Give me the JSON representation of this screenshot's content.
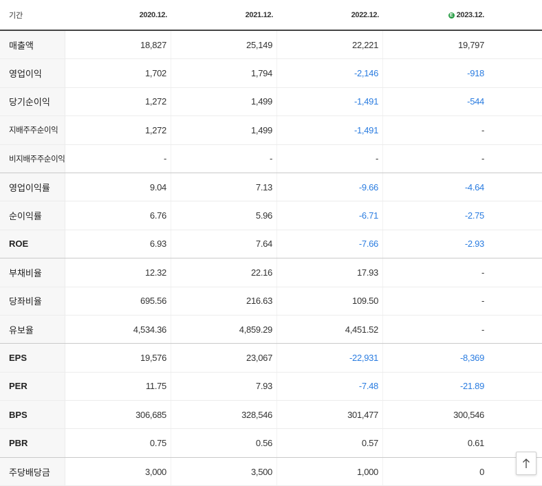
{
  "header": {
    "period_label": "기간",
    "periods": [
      "2020.12.",
      "2021.12.",
      "2022.12.",
      "2023.12."
    ],
    "estimate_badge": "E"
  },
  "colors": {
    "negative": "#2a7ce0",
    "estimate_badge": "#2fa04b"
  },
  "rows": [
    {
      "label": "매출액",
      "values": [
        "18,827",
        "25,149",
        "22,221",
        "19,797"
      ]
    },
    {
      "label": "영업이익",
      "values": [
        "1,702",
        "1,794",
        "-2,146",
        "-918"
      ]
    },
    {
      "label": "당기순이익",
      "values": [
        "1,272",
        "1,499",
        "-1,491",
        "-544"
      ]
    },
    {
      "label": "지배주주순이익",
      "values": [
        "1,272",
        "1,499",
        "-1,491",
        "-"
      ]
    },
    {
      "label": "비지배주주순이익",
      "values": [
        "-",
        "-",
        "-",
        "-"
      ]
    },
    {
      "label": "영업이익률",
      "values": [
        "9.04",
        "7.13",
        "-9.66",
        "-4.64"
      ]
    },
    {
      "label": "순이익률",
      "values": [
        "6.76",
        "5.96",
        "-6.71",
        "-2.75"
      ]
    },
    {
      "label": "ROE",
      "values": [
        "6.93",
        "7.64",
        "-7.66",
        "-2.93"
      ]
    },
    {
      "label": "부채비율",
      "values": [
        "12.32",
        "22.16",
        "17.93",
        "-"
      ]
    },
    {
      "label": "당좌비율",
      "values": [
        "695.56",
        "216.63",
        "109.50",
        "-"
      ]
    },
    {
      "label": "유보율",
      "values": [
        "4,534.36",
        "4,859.29",
        "4,451.52",
        "-"
      ]
    },
    {
      "label": "EPS",
      "values": [
        "19,576",
        "23,067",
        "-22,931",
        "-8,369"
      ]
    },
    {
      "label": "PER",
      "values": [
        "11.75",
        "7.93",
        "-7.48",
        "-21.89"
      ]
    },
    {
      "label": "BPS",
      "values": [
        "306,685",
        "328,546",
        "301,477",
        "300,546"
      ]
    },
    {
      "label": "PBR",
      "values": [
        "0.75",
        "0.56",
        "0.57",
        "0.61"
      ]
    },
    {
      "label": "주당배당금",
      "values": [
        "3,000",
        "3,500",
        "1,000",
        "0"
      ]
    }
  ]
}
